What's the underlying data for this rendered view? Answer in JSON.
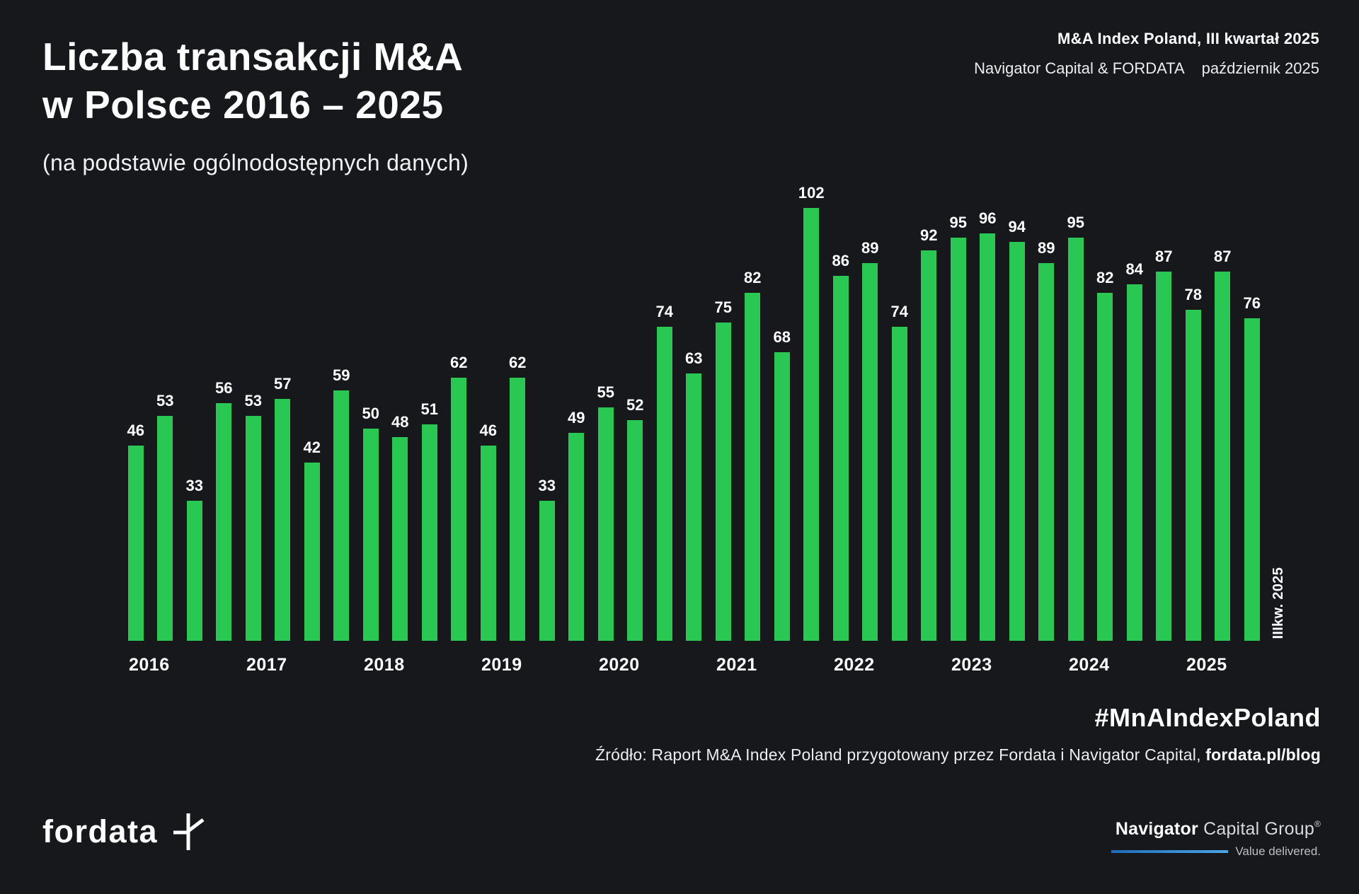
{
  "header": {
    "title_line1": "Liczba transakcji M&A",
    "title_line2": "w Polsce 2016 – 2025",
    "subtitle": "(na podstawie ogólnodostępnych danych)",
    "report_title": "M&A Index Poland, III kwartał 2025",
    "credits": "Navigator Capital & FORDATA",
    "date": "październik 2025"
  },
  "chart_data": {
    "type": "bar",
    "title": "Liczba transakcji M&A w Polsce 2016 – 2025",
    "xlabel": "",
    "ylabel": "",
    "ylim": [
      0,
      102
    ],
    "grid": false,
    "legend": "none",
    "bar_color": "#29c853",
    "value_label_color": "#ffffff",
    "background_color": "#16181b",
    "last_bar_label": "IIIkw. 2025",
    "years": [
      {
        "year": "2016",
        "values": [
          46,
          53,
          33,
          56
        ]
      },
      {
        "year": "2017",
        "values": [
          53,
          57,
          42,
          59
        ]
      },
      {
        "year": "2018",
        "values": [
          50,
          48,
          51,
          62
        ]
      },
      {
        "year": "2019",
        "values": [
          46,
          62,
          33,
          49
        ]
      },
      {
        "year": "2020",
        "values": [
          55,
          52,
          74,
          63
        ]
      },
      {
        "year": "2021",
        "values": [
          75,
          82,
          68,
          102
        ]
      },
      {
        "year": "2022",
        "values": [
          86,
          89,
          74,
          92
        ]
      },
      {
        "year": "2023",
        "values": [
          95,
          96,
          94,
          89
        ]
      },
      {
        "year": "2024",
        "values": [
          95,
          82,
          84,
          87
        ]
      },
      {
        "year": "2025",
        "values": [
          78,
          87,
          76
        ]
      }
    ]
  },
  "footer": {
    "hashtag": "#MnAIndexPoland",
    "source_prefix": "Źródło: Raport M&A Index Poland przygotowany przez Fordata i Navigator Capital, ",
    "source_link": "fordata.pl/blog",
    "fordata_wordmark": "fordata",
    "navigator_bold": "Navigator",
    "navigator_rest": " Capital Group",
    "navigator_registered": "®",
    "navigator_tagline": "Value delivered."
  }
}
